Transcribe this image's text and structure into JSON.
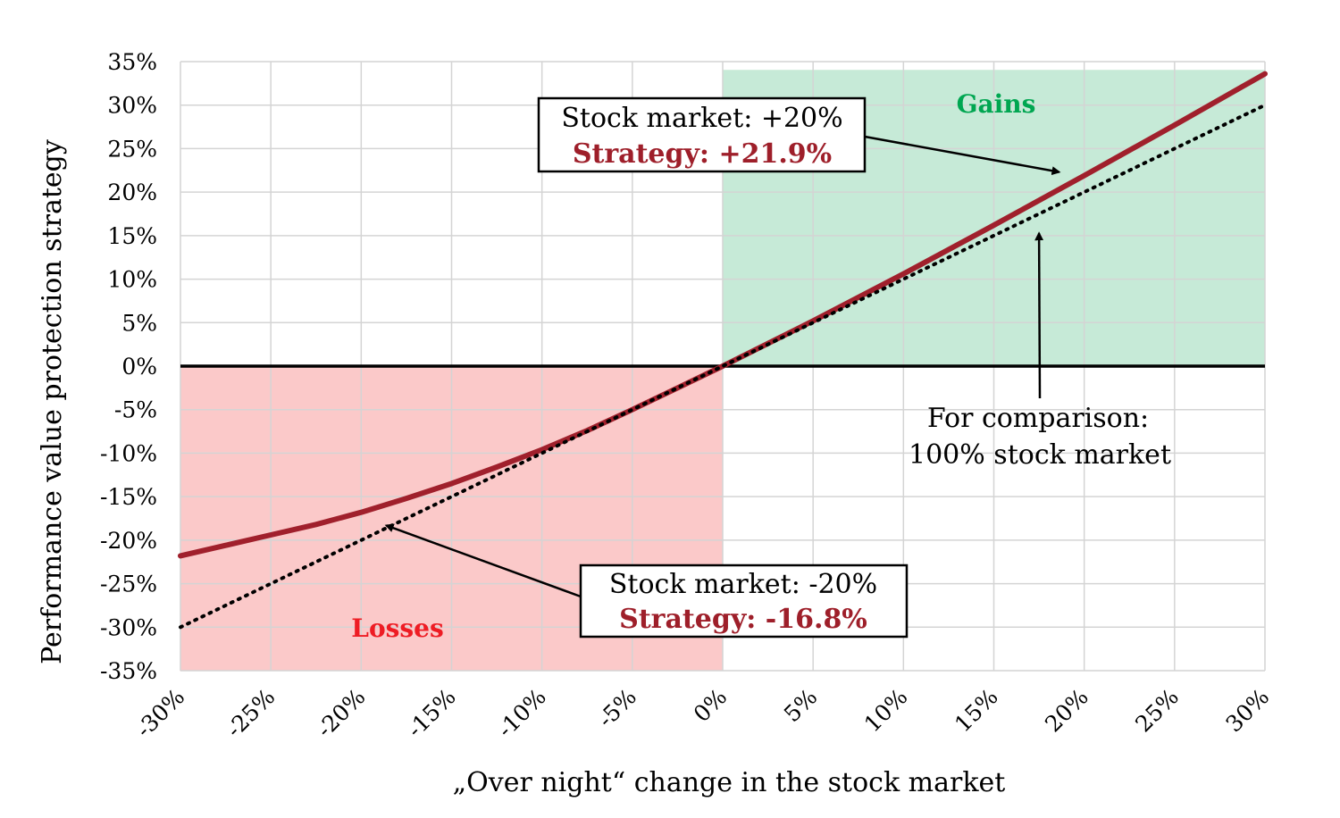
{
  "chart_data": {
    "type": "line",
    "xlabel": "„Over night“ change in the stock market",
    "ylabel": "Performance value protection strategy",
    "x_ticks": [
      "-30%",
      "-25%",
      "-20%",
      "-15%",
      "-10%",
      "-5%",
      "0%",
      "5%",
      "10%",
      "15%",
      "20%",
      "25%",
      "30%"
    ],
    "y_ticks": [
      "35%",
      "30%",
      "25%",
      "20%",
      "15%",
      "10%",
      "5%",
      "0%",
      "-5%",
      "-10%",
      "-15%",
      "-20%",
      "-25%",
      "-30%",
      "-35%"
    ],
    "xlim": [
      -30,
      30
    ],
    "ylim": [
      -35,
      35
    ],
    "grid": true,
    "regions": [
      {
        "label": "Gains",
        "color": "#c6ead7",
        "label_color": "#00a651",
        "x": [
          0,
          30
        ],
        "y": [
          0,
          34
        ]
      },
      {
        "label": "Losses",
        "color": "#fbc9c9",
        "label_color": "#ee1c24",
        "x": [
          -30,
          0
        ],
        "y": [
          -35,
          0
        ]
      }
    ],
    "series": [
      {
        "style": "solid",
        "color": "#a0202c",
        "x": [
          -30,
          -27.5,
          -25,
          -22.5,
          -20,
          -17.5,
          -15,
          -12.5,
          -10,
          -7.5,
          -5,
          -2.5,
          0,
          5,
          10,
          15,
          20,
          25,
          30
        ],
        "y": [
          -21.8,
          -20.6,
          -19.4,
          -18.2,
          -16.8,
          -15.2,
          -13.5,
          -11.6,
          -9.6,
          -7.4,
          -5.0,
          -2.5,
          0,
          5.2,
          10.6,
          16.2,
          21.9,
          27.7,
          33.6
        ]
      },
      {
        "style": "dotted",
        "color": "#000000",
        "x": [
          -30,
          30
        ],
        "y": [
          -30,
          30
        ]
      }
    ],
    "zero_line": {
      "y": 0,
      "color": "#000000"
    },
    "annotations": [
      {
        "line1": "Stock market: +20%",
        "line2": "Strategy: +21.9%",
        "point": {
          "x": 19.2,
          "y": 21.9
        }
      },
      {
        "line1": "Stock market: -20%",
        "line2": "Strategy: -16.8%",
        "point": {
          "x": -19.2,
          "y": -17.7
        }
      },
      {
        "line1": "For comparison:",
        "line2": "100% stock market",
        "point": {
          "x": 17.5,
          "y": 16.5
        }
      }
    ],
    "strategy_text_color": "#9e1f2a"
  }
}
